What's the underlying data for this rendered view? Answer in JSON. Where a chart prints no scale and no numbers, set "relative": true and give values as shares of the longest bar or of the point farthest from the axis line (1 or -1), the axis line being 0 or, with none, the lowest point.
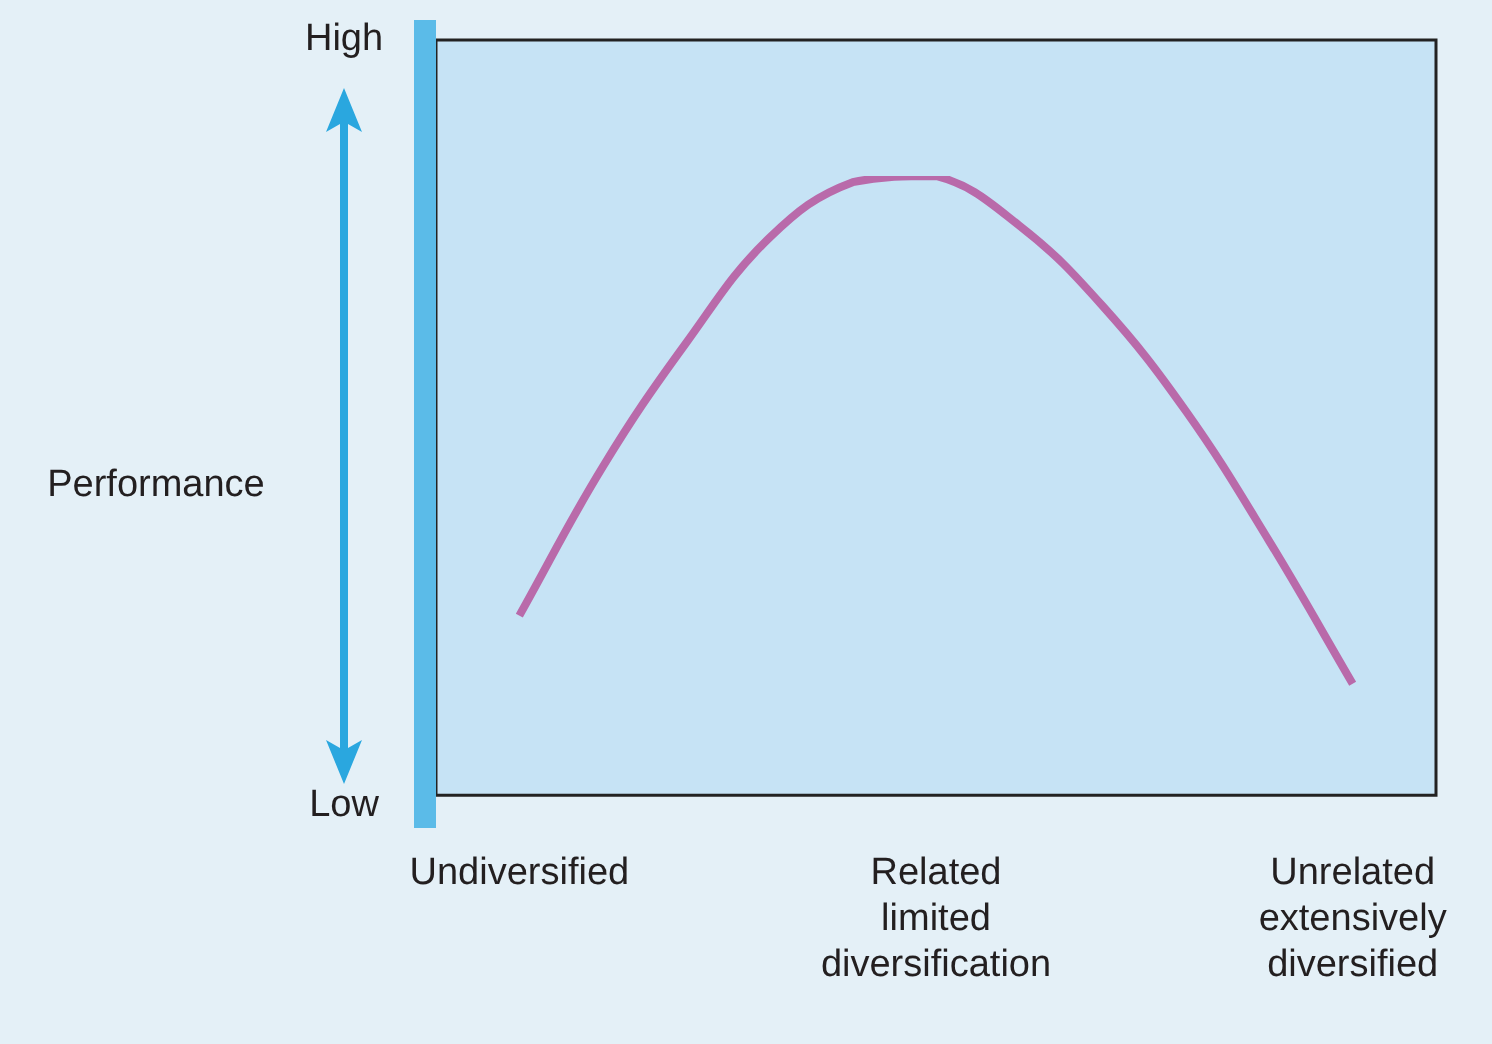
{
  "chart_data": {
    "type": "line",
    "relative": true,
    "ylabel": "Performance",
    "annotations": [
      "High",
      "Low"
    ],
    "categories": [
      null,
      "Undiversified",
      null,
      null,
      null,
      null,
      "Related limited diversification",
      null,
      null,
      null,
      null,
      "Unrelated extensively diversified",
      null
    ],
    "series": [
      {
        "color": "#b96aaa",
        "values": [
          null,
          0.29,
          0.53,
          0.73,
          0.9,
          0.99,
          1.0,
          0.92,
          0.79,
          0.62,
          0.41,
          0.18,
          null
        ]
      }
    ],
    "grid": false,
    "legend": false,
    "marker": "none",
    "line_style": "solid"
  }
}
